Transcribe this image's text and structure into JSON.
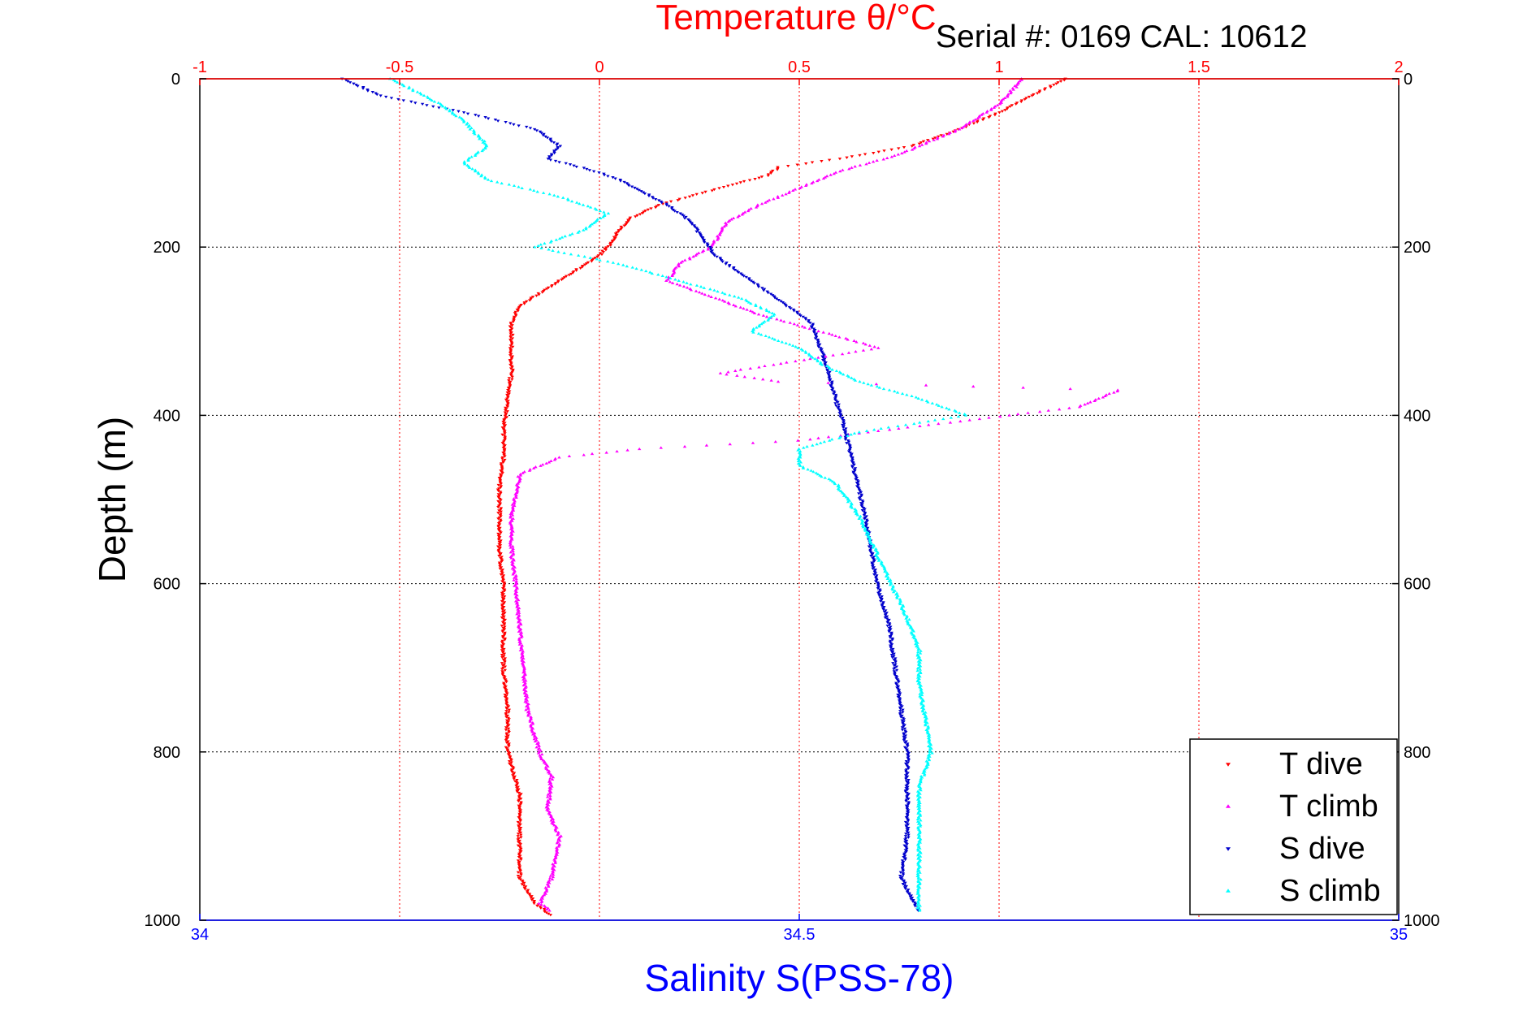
{
  "chart_data": {
    "type": "scatter",
    "title": "Temperature θ/°C",
    "subtitle": "Serial #: 0169 CAL: 10612",
    "ylabel": "Depth (m)",
    "xlabel": "Salinity S(PSS-78)",
    "top_axis": {
      "label": "Temperature θ/°C",
      "range": [
        -1,
        2
      ],
      "ticks": [
        "-1",
        "-0.5",
        "0",
        "0.5",
        "1",
        "1.5",
        "2"
      ],
      "color": "#ff0000"
    },
    "bottom_axis": {
      "label": "Salinity S(PSS-78)",
      "range": [
        34,
        35
      ],
      "ticks": [
        "34",
        "34.5",
        "35"
      ],
      "color": "#0000ff"
    },
    "depth_axis": {
      "range": [
        0,
        1000
      ],
      "reversed": true,
      "ticks": [
        "0",
        "200",
        "400",
        "600",
        "800",
        "1000"
      ]
    },
    "grid": true,
    "legend_position": "bottom-right",
    "series": [
      {
        "name": "T dive",
        "axis": "temperature",
        "color": "#ff0000",
        "marker": "triangle-down",
        "points": [
          [
            1.17,
            0
          ],
          [
            1.08,
            20
          ],
          [
            1.0,
            40
          ],
          [
            0.9,
            60
          ],
          [
            0.78,
            80
          ],
          [
            0.6,
            95
          ],
          [
            0.45,
            105
          ],
          [
            0.42,
            115
          ],
          [
            0.3,
            130
          ],
          [
            0.15,
            150
          ],
          [
            0.08,
            165
          ],
          [
            0.05,
            180
          ],
          [
            0.03,
            195
          ],
          [
            0.0,
            210
          ],
          [
            -0.05,
            225
          ],
          [
            -0.1,
            240
          ],
          [
            -0.15,
            255
          ],
          [
            -0.2,
            270
          ],
          [
            -0.22,
            290
          ],
          [
            -0.22,
            320
          ],
          [
            -0.22,
            350
          ],
          [
            -0.23,
            380
          ],
          [
            -0.24,
            420
          ],
          [
            -0.24,
            450
          ],
          [
            -0.25,
            480
          ],
          [
            -0.25,
            520
          ],
          [
            -0.25,
            560
          ],
          [
            -0.24,
            600
          ],
          [
            -0.24,
            650
          ],
          [
            -0.24,
            700
          ],
          [
            -0.23,
            750
          ],
          [
            -0.23,
            800
          ],
          [
            -0.2,
            850
          ],
          [
            -0.2,
            900
          ],
          [
            -0.2,
            950
          ],
          [
            -0.16,
            980
          ],
          [
            -0.12,
            995
          ]
        ]
      },
      {
        "name": "T climb",
        "axis": "temperature",
        "color": "#ff00ff",
        "marker": "triangle-up",
        "points": [
          [
            1.06,
            0
          ],
          [
            1.0,
            30
          ],
          [
            0.9,
            60
          ],
          [
            0.75,
            90
          ],
          [
            0.6,
            110
          ],
          [
            0.5,
            130
          ],
          [
            0.4,
            150
          ],
          [
            0.32,
            170
          ],
          [
            0.28,
            200
          ],
          [
            0.2,
            220
          ],
          [
            0.17,
            240
          ],
          [
            0.4,
            280
          ],
          [
            0.55,
            300
          ],
          [
            0.7,
            320
          ],
          [
            0.3,
            350
          ],
          [
            0.45,
            360
          ],
          [
            1.3,
            370
          ],
          [
            1.2,
            390
          ],
          [
            0.85,
            410
          ],
          [
            0.5,
            430
          ],
          [
            0.1,
            440
          ],
          [
            -0.1,
            450
          ],
          [
            -0.2,
            470
          ],
          [
            -0.22,
            520
          ],
          [
            -0.22,
            560
          ],
          [
            -0.21,
            600
          ],
          [
            -0.2,
            650
          ],
          [
            -0.19,
            700
          ],
          [
            -0.18,
            750
          ],
          [
            -0.15,
            800
          ],
          [
            -0.12,
            830
          ],
          [
            -0.13,
            870
          ],
          [
            -0.1,
            900
          ],
          [
            -0.12,
            950
          ],
          [
            -0.15,
            980
          ],
          [
            -0.12,
            990
          ]
        ]
      },
      {
        "name": "S dive",
        "axis": "salinity",
        "color": "#0000cc",
        "marker": "triangle-down",
        "points": [
          [
            34.12,
            0
          ],
          [
            34.15,
            20
          ],
          [
            34.22,
            40
          ],
          [
            34.28,
            60
          ],
          [
            34.3,
            80
          ],
          [
            34.29,
            95
          ],
          [
            34.33,
            110
          ],
          [
            34.35,
            120
          ],
          [
            34.37,
            135
          ],
          [
            34.39,
            150
          ],
          [
            34.41,
            170
          ],
          [
            34.42,
            190
          ],
          [
            34.43,
            210
          ],
          [
            34.45,
            230
          ],
          [
            34.47,
            250
          ],
          [
            34.49,
            270
          ],
          [
            34.51,
            290
          ],
          [
            34.515,
            310
          ],
          [
            34.52,
            330
          ],
          [
            34.525,
            350
          ],
          [
            34.53,
            380
          ],
          [
            34.535,
            400
          ],
          [
            34.54,
            430
          ],
          [
            34.545,
            460
          ],
          [
            34.55,
            490
          ],
          [
            34.555,
            520
          ],
          [
            34.56,
            560
          ],
          [
            34.565,
            600
          ],
          [
            34.575,
            650
          ],
          [
            34.58,
            700
          ],
          [
            34.585,
            750
          ],
          [
            34.59,
            800
          ],
          [
            34.59,
            850
          ],
          [
            34.59,
            900
          ],
          [
            34.585,
            950
          ],
          [
            34.6,
            990
          ]
        ]
      },
      {
        "name": "S climb",
        "axis": "salinity",
        "color": "#00ffff",
        "marker": "triangle-up",
        "points": [
          [
            34.16,
            0
          ],
          [
            34.2,
            30
          ],
          [
            34.22,
            50
          ],
          [
            34.24,
            80
          ],
          [
            34.22,
            100
          ],
          [
            34.24,
            120
          ],
          [
            34.3,
            140
          ],
          [
            34.34,
            160
          ],
          [
            34.32,
            180
          ],
          [
            34.28,
            200
          ],
          [
            34.35,
            220
          ],
          [
            34.4,
            240
          ],
          [
            34.45,
            260
          ],
          [
            34.48,
            280
          ],
          [
            34.46,
            300
          ],
          [
            34.5,
            320
          ],
          [
            34.52,
            340
          ],
          [
            34.55,
            360
          ],
          [
            34.6,
            380
          ],
          [
            34.64,
            400
          ],
          [
            34.55,
            420
          ],
          [
            34.5,
            440
          ],
          [
            34.5,
            460
          ],
          [
            34.53,
            480
          ],
          [
            34.54,
            500
          ],
          [
            34.55,
            520
          ],
          [
            34.56,
            550
          ],
          [
            34.57,
            580
          ],
          [
            34.58,
            610
          ],
          [
            34.59,
            640
          ],
          [
            34.6,
            680
          ],
          [
            34.6,
            720
          ],
          [
            34.605,
            760
          ],
          [
            34.61,
            800
          ],
          [
            34.6,
            840
          ],
          [
            34.6,
            880
          ],
          [
            34.6,
            920
          ],
          [
            34.6,
            960
          ],
          [
            34.6,
            990
          ]
        ]
      }
    ]
  }
}
